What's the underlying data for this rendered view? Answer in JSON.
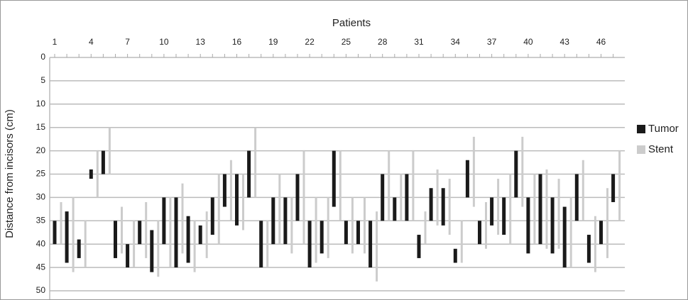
{
  "chart_data": {
    "type": "range-bar",
    "title": "Patients",
    "y_label": "Distance from incisors (cm)",
    "categories": [
      "1",
      null,
      null,
      "4",
      null,
      null,
      "7",
      null,
      null,
      "10",
      null,
      null,
      "13",
      null,
      null,
      "16",
      null,
      null,
      "19",
      null,
      null,
      "22",
      null,
      null,
      "25",
      null,
      null,
      "28",
      null,
      null,
      "31",
      null,
      null,
      "34",
      null,
      null,
      "37",
      null,
      null,
      "40",
      null,
      null,
      "43",
      null,
      null,
      "46",
      null
    ],
    "series": [
      {
        "name": "Tumor",
        "color": "#1a1a1a",
        "start": [
          35,
          33,
          39,
          24,
          20,
          35,
          40,
          35,
          37,
          30,
          30,
          34,
          36,
          30,
          25,
          25,
          20,
          35,
          30,
          30,
          25,
          35,
          35,
          20,
          35,
          35,
          35,
          25,
          30,
          25,
          38,
          28,
          28,
          41,
          22,
          35,
          30,
          30,
          20,
          30,
          25,
          30,
          32,
          25,
          38,
          35,
          25
        ],
        "end": [
          40,
          44,
          43,
          26,
          25,
          43,
          45,
          40,
          46,
          40,
          45,
          44,
          40,
          38,
          32,
          36,
          30,
          45,
          40,
          40,
          35,
          45,
          42,
          32,
          40,
          40,
          45,
          35,
          35,
          35,
          43,
          35,
          36,
          44,
          30,
          40,
          36,
          38,
          30,
          42,
          40,
          42,
          45,
          35,
          44,
          40,
          31
        ]
      },
      {
        "name": "Stent",
        "color": "#cccccc",
        "start": [
          31,
          30,
          35,
          20,
          15,
          32,
          35,
          31,
          35,
          30,
          27,
          35,
          33,
          25,
          22,
          25,
          15,
          35,
          25,
          30,
          20,
          30,
          30,
          20,
          30,
          30,
          33,
          20,
          25,
          20,
          33,
          24,
          26,
          35,
          17,
          31,
          26,
          25,
          17,
          25,
          24,
          26,
          30,
          22,
          34,
          28,
          20
        ],
        "end": [
          40,
          46,
          45,
          30,
          25,
          42,
          45,
          43,
          47,
          45,
          42,
          46,
          43,
          40,
          35,
          37,
          30,
          45,
          40,
          42,
          40,
          44,
          43,
          35,
          42,
          42,
          48,
          35,
          35,
          35,
          40,
          36,
          38,
          44,
          32,
          41,
          38,
          40,
          32,
          40,
          41,
          41,
          45,
          35,
          46,
          43,
          35
        ]
      }
    ],
    "ylim": [
      0,
      50
    ],
    "y_inverted": true,
    "yticks": [
      0,
      5,
      10,
      15,
      20,
      25,
      30,
      35,
      40,
      45,
      50
    ],
    "grid": true,
    "legend": "right"
  }
}
